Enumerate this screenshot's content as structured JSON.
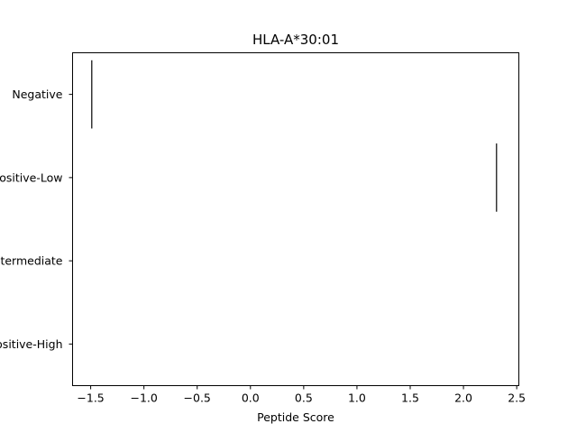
{
  "chart_data": {
    "type": "scatter",
    "title": "HLA-A*30:01",
    "xlabel": "Peptide Score",
    "ylabel": "",
    "xlim": [
      -1.67,
      2.52
    ],
    "x_ticks": [
      -1.5,
      -1.0,
      -0.5,
      0.0,
      0.5,
      1.0,
      1.5,
      2.0,
      2.5
    ],
    "x_tick_labels": [
      "−1.5",
      "−1.0",
      "−0.5",
      "0.0",
      "0.5",
      "1.0",
      "1.5",
      "2.0",
      "2.5"
    ],
    "categories": [
      "Negative",
      "Positive-Low",
      "Positive-Intermediate",
      "Positive-High"
    ],
    "points": [
      {
        "category": "Negative",
        "x": -1.49
      },
      {
        "category": "Positive-Low",
        "x": 2.31
      }
    ],
    "marker_color": "#333333",
    "grid": false,
    "legend": "none"
  }
}
